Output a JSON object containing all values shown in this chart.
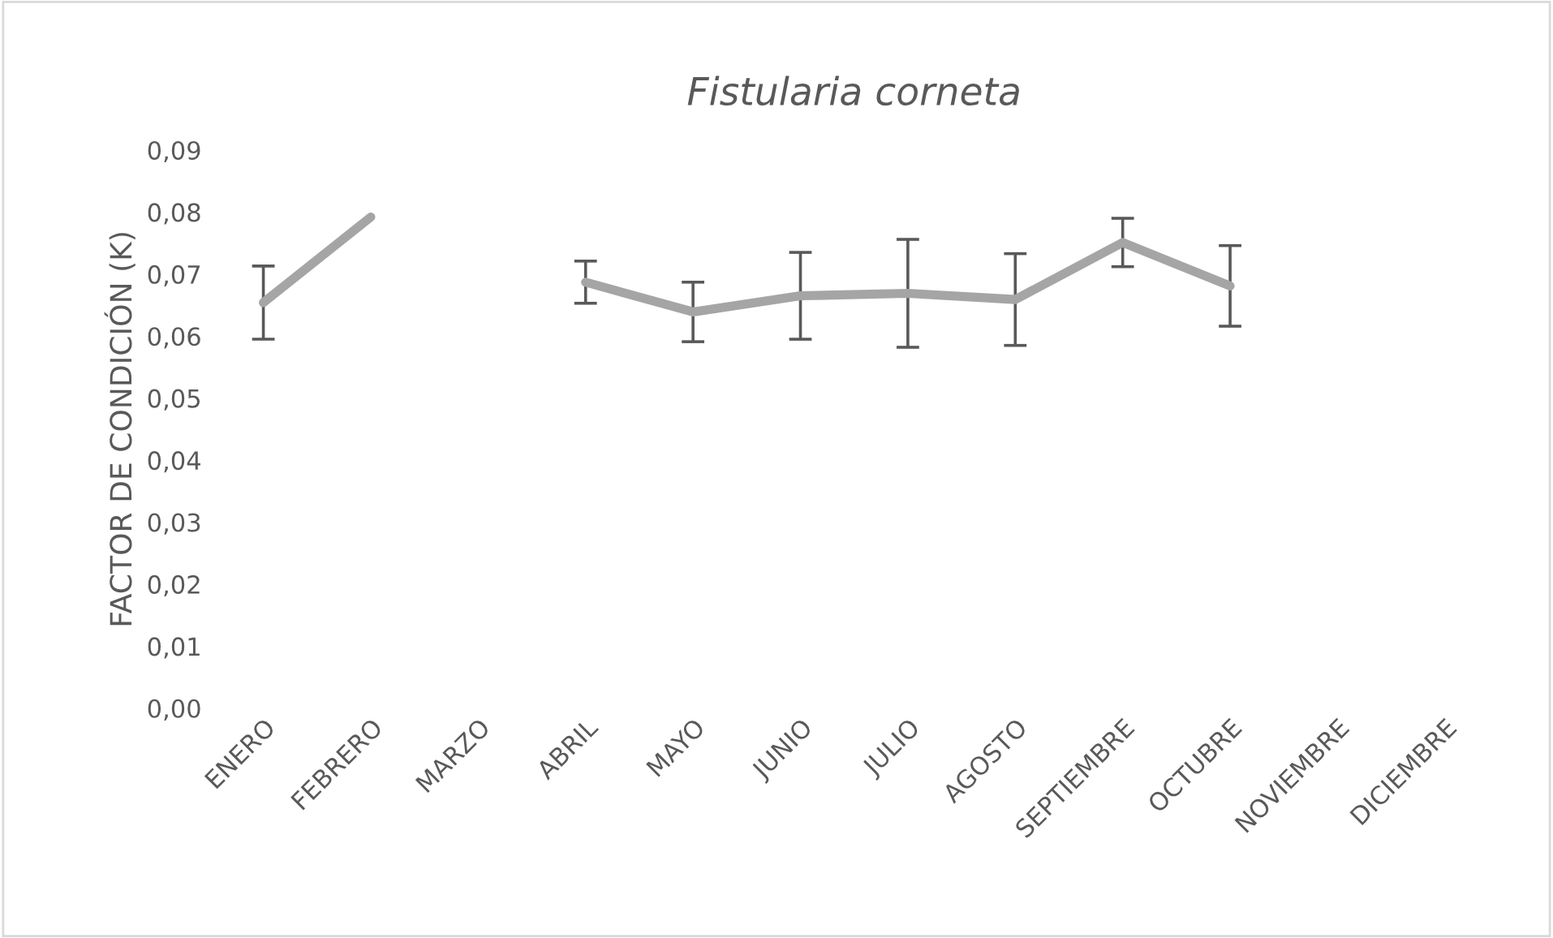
{
  "chart_data": {
    "type": "line",
    "title": "Fistularia corneta",
    "ylabel": "FACTOR DE CONDICIÓN (K)",
    "categories": [
      "ENERO",
      "FEBRERO",
      "MARZO",
      "ABRIL",
      "MAYO",
      "JUNIO",
      "JULIO",
      "AGOSTO",
      "SEPTIEMBRE",
      "OCTUBRE",
      "NOVIEMBRE",
      "DICIEMBRE"
    ],
    "series": [
      {
        "color": "#a5a5a5",
        "values": [
          0.0654,
          0.0792,
          null,
          0.0687,
          0.0639,
          0.0665,
          0.0669,
          0.0659,
          0.0751,
          0.0681,
          null,
          null
        ],
        "errors": [
          0.0059,
          null,
          null,
          0.0034,
          0.0048,
          0.007,
          0.0087,
          0.0074,
          0.0039,
          0.0065,
          null,
          null
        ]
      }
    ],
    "ylim": [
      0,
      0.09
    ],
    "yticks": [
      {
        "value": 0,
        "label": "0,00"
      },
      {
        "value": 0.01,
        "label": "0,01"
      },
      {
        "value": 0.02,
        "label": "0,02"
      },
      {
        "value": 0.03,
        "label": "0,03"
      },
      {
        "value": 0.04,
        "label": "0,04"
      },
      {
        "value": 0.05,
        "label": "0,05"
      },
      {
        "value": 0.06,
        "label": "0,06"
      },
      {
        "value": 0.07,
        "label": "0,07"
      },
      {
        "value": 0.08,
        "label": "0,08"
      },
      {
        "value": 0.09,
        "label": "0,09"
      }
    ],
    "grid": false,
    "legend": false,
    "marker": "none",
    "line_style": "solid"
  }
}
